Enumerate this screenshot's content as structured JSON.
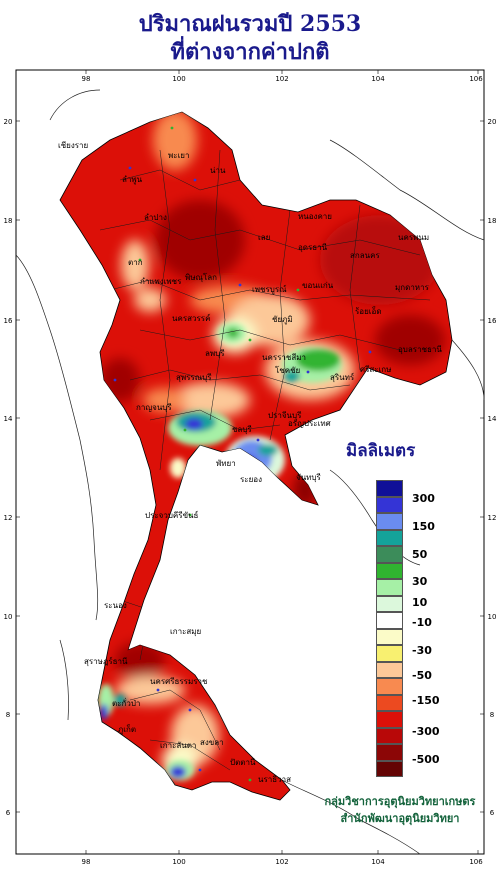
{
  "title": {
    "line1": "ปริมาณฝนรวมปี  2553",
    "line2": "ที่ต่างจากค่าปกติ"
  },
  "axes": {
    "lon_ticks": [
      "98",
      "100",
      "102",
      "104",
      "106"
    ],
    "lat_ticks": [
      "20",
      "18",
      "16",
      "14",
      "12",
      "10",
      "8",
      "6"
    ]
  },
  "places": [
    "เชียงราย",
    "พะเยา",
    "น่าน",
    "ลำพูน",
    "ลำปาง",
    "ตาก",
    "หนองคาย",
    "นครพนม",
    "เลย",
    "สกลนคร",
    "อุดรธานี",
    "ขอนแก่น",
    "มุกดาหาร",
    "กำแพงเพชร",
    "พิษณุโลก",
    "เพชรบูรณ์",
    "ชัยภูมิ",
    "นครสวรรค์",
    "ร้อยเอ็ด",
    "อุบลราชธานี",
    "ลพบุรี",
    "นครราชสีมา",
    "โชคชัย",
    "สุรินทร์",
    "ศรีสะเกษ",
    "สุพรรณบุรี",
    "กาญจนบุรี",
    "ปราจีนบุรี",
    "อรัญประเทศ",
    "ชลบุรี",
    "พัทยา",
    "ระยอง",
    "จันทบุรี",
    "ประจวบคีรีขันธ์",
    "ระนอง",
    "เกาะสมุย",
    "สุราษฎร์ธานี",
    "นครศรีธรรมราช",
    "ตะกั่วป่า",
    "ภูเก็ต",
    "เกาะลันตา",
    "สงขลา",
    "ปัตตานี",
    "นราธิวาส"
  ],
  "legend": {
    "unit_label": "มิลลิเมตร",
    "labels": [
      "300",
      "150",
      "50",
      "30",
      "10",
      "-10",
      "-30",
      "-50",
      "-150",
      "-300",
      "-500"
    ],
    "colors": [
      "#101098",
      "#3434d6",
      "#6a8cf0",
      "#14a39a",
      "#3c8c5a",
      "#30b430",
      "#a6f0a6",
      "#dcf8dc",
      "#ffffff",
      "#fbfbc8",
      "#f8f070",
      "#fcc898",
      "#f88a50",
      "#ec4a20",
      "#dc1008",
      "#b80808",
      "#8c0606",
      "#640404"
    ]
  },
  "credit": {
    "line1": "กลุ่มวิชาการอุตุนิยมวิทยาเกษตร",
    "line2": "สำนักพัฒนาอุตุนิยมวิทยา"
  }
}
